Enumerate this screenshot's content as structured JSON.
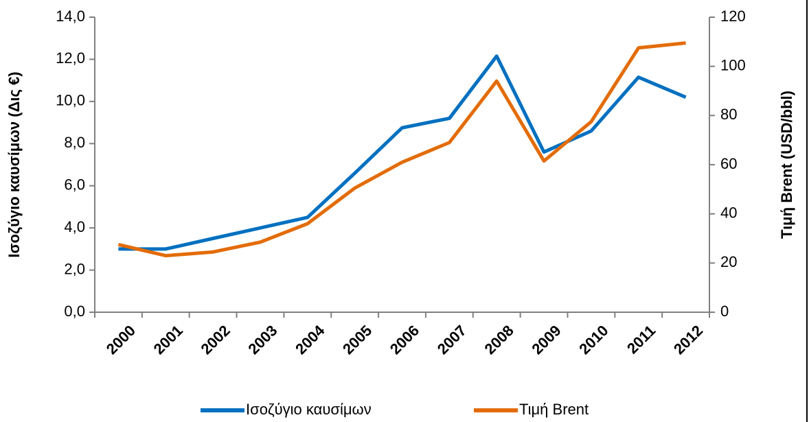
{
  "chart_data": {
    "type": "line",
    "categories": [
      "2000",
      "2001",
      "2002",
      "2003",
      "2004",
      "2005",
      "2006",
      "2007",
      "2008",
      "2009",
      "2010",
      "2011",
      "2012"
    ],
    "series": [
      {
        "name": "Ισοζύγιο καυσίμων",
        "color": "#0070c0",
        "values": [
          3.0,
          3.0,
          3.5,
          4.0,
          4.5,
          6.6,
          8.75,
          9.2,
          12.15,
          7.6,
          8.6,
          11.15,
          10.2
        ]
      },
      {
        "name": "Τιμή Brent",
        "color": "#e36c09",
        "axis": "y2",
        "values": [
          27.5,
          23,
          24.5,
          28.5,
          36,
          50.5,
          61,
          69,
          94,
          61.5,
          77.5,
          107.5,
          109.5
        ]
      }
    ],
    "ylabel": "Ισοζύγιο καυσίμων (Δις €)",
    "y2label": "Τιμή Brent (USD/bbl)",
    "ylim": [
      0,
      14
    ],
    "yticks": [
      {
        "value": 0,
        "label": "0,0"
      },
      {
        "value": 2,
        "label": "2,0"
      },
      {
        "value": 4,
        "label": "4,0"
      },
      {
        "value": 6,
        "label": "6,0"
      },
      {
        "value": 8,
        "label": "8,0"
      },
      {
        "value": 10,
        "label": "10,0"
      },
      {
        "value": 12,
        "label": "12,0"
      },
      {
        "value": 14,
        "label": "14,0"
      }
    ],
    "y2lim": [
      0,
      120
    ],
    "y2ticks": [
      0,
      20,
      40,
      60,
      80,
      100,
      120
    ],
    "grid": false,
    "legend": "bottom"
  }
}
